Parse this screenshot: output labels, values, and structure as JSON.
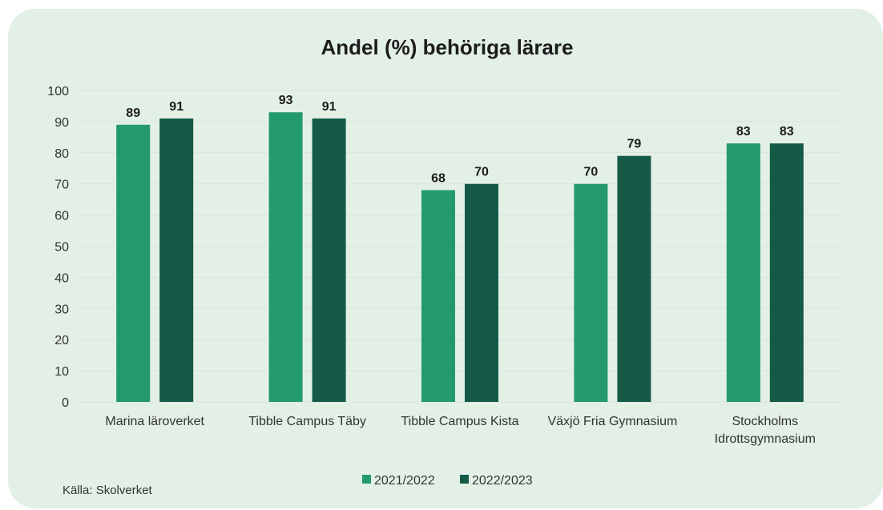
{
  "chart_data": {
    "type": "bar",
    "title": "Andel (%) behöriga lärare",
    "categories": [
      [
        "Marina läroverket"
      ],
      [
        "Tibble Campus Täby"
      ],
      [
        "Tibble Campus Kista"
      ],
      [
        "Växjö Fria Gymnasium"
      ],
      [
        "Stockholms",
        "Idrottsgymnasium"
      ]
    ],
    "series": [
      {
        "name": "2021/2022",
        "color": "#239a6c",
        "values": [
          89,
          93,
          68,
          70,
          83
        ]
      },
      {
        "name": "2022/2023",
        "color": "#145a47",
        "values": [
          91,
          91,
          70,
          79,
          83
        ]
      }
    ],
    "ylim": [
      0,
      100
    ],
    "yticks": [
      0,
      10,
      20,
      30,
      40,
      50,
      60,
      70,
      80,
      90,
      100
    ],
    "grid": true,
    "legend_position": "bottom",
    "data_labels": true
  },
  "source": "Källa: Skolverket",
  "colors": {
    "background_panel": "#e3f0e6",
    "gridline": "#d9e3dc"
  }
}
